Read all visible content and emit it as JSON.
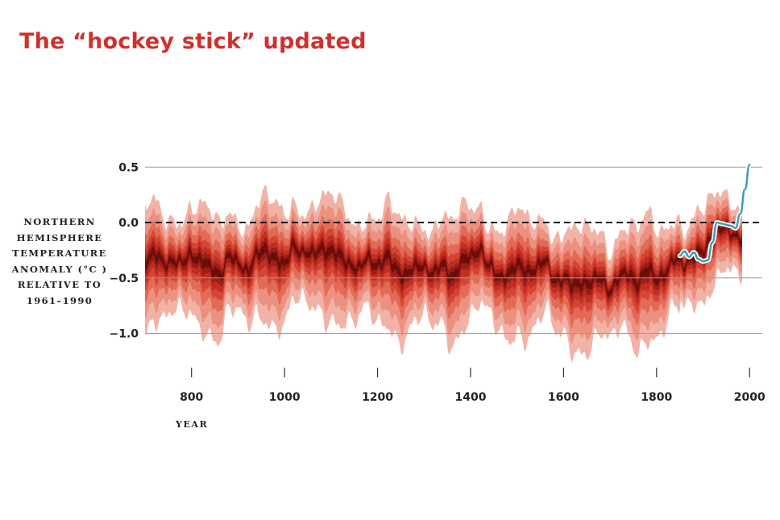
{
  "title": "The “hockey stick” updated",
  "chart_data": {
    "type": "area",
    "title": "The “hockey stick” updated",
    "ylabel_lines": [
      "NORTHERN",
      "HEMISPHERE",
      "TEMPERATURE",
      "ANOMALY (°C )",
      "RELATIVE TO",
      "1961–1990"
    ],
    "xlabel": "YEAR",
    "xlim": [
      700,
      2010
    ],
    "ylim": [
      -1.4,
      0.72
    ],
    "x_ticks": [
      "800",
      "1000",
      "1200",
      "1400",
      "1600",
      "1800",
      "2000"
    ],
    "y_ticks": [
      "0.5",
      "0.0",
      "-0.5",
      "-1.0"
    ],
    "reference_line": 0.0,
    "colors": {
      "bands": [
        "#f2b3a7",
        "#ec9180",
        "#e26a56",
        "#d54535",
        "#c02e22",
        "#9d1c16",
        "#6a0e0a"
      ],
      "instrumental": "#3a9cb5",
      "reference": "#111111",
      "grid": "#9a9a9a",
      "title": "#d0312d"
    },
    "proxy_center": {
      "x": [
        700,
        720,
        740,
        760,
        780,
        800,
        820,
        840,
        860,
        880,
        900,
        920,
        940,
        960,
        980,
        1000,
        1020,
        1040,
        1060,
        1080,
        1100,
        1120,
        1140,
        1160,
        1180,
        1200,
        1220,
        1240,
        1260,
        1280,
        1300,
        1320,
        1340,
        1360,
        1380,
        1400,
        1420,
        1440,
        1460,
        1480,
        1500,
        1520,
        1540,
        1560,
        1580,
        1600,
        1620,
        1640,
        1660,
        1680,
        1700,
        1720,
        1740,
        1760,
        1780,
        1800,
        1820,
        1840,
        1860,
        1880,
        1900,
        1920,
        1940,
        1960,
        1980
      ],
      "y": [
        -0.32,
        -0.3,
        -0.36,
        -0.33,
        -0.38,
        -0.28,
        -0.33,
        -0.42,
        -0.46,
        -0.3,
        -0.38,
        -0.42,
        -0.3,
        -0.26,
        -0.3,
        -0.4,
        -0.2,
        -0.26,
        -0.3,
        -0.22,
        -0.26,
        -0.32,
        -0.36,
        -0.42,
        -0.33,
        -0.37,
        -0.32,
        -0.42,
        -0.46,
        -0.42,
        -0.39,
        -0.45,
        -0.4,
        -0.48,
        -0.36,
        -0.32,
        -0.22,
        -0.4,
        -0.5,
        -0.45,
        -0.4,
        -0.44,
        -0.4,
        -0.36,
        -0.5,
        -0.5,
        -0.58,
        -0.52,
        -0.54,
        -0.5,
        -0.6,
        -0.5,
        -0.46,
        -0.53,
        -0.44,
        -0.5,
        -0.44,
        -0.34,
        -0.36,
        -0.3,
        -0.28,
        -0.1,
        -0.05,
        -0.1,
        -0.12
      ]
    },
    "proxy_halfwidths": [
      0.6,
      0.45,
      0.32,
      0.22,
      0.15,
      0.09,
      0.04
    ],
    "instrumental": {
      "name": "",
      "x": [
        1850,
        1860,
        1870,
        1880,
        1890,
        1900,
        1910,
        1920,
        1930,
        1940,
        1950,
        1960,
        1970,
        1980,
        1990,
        2000
      ],
      "y": [
        -0.3,
        -0.26,
        -0.31,
        -0.27,
        -0.33,
        -0.35,
        -0.34,
        -0.18,
        0.0,
        -0.01,
        -0.02,
        -0.03,
        -0.05,
        0.08,
        0.3,
        0.52
      ]
    }
  }
}
